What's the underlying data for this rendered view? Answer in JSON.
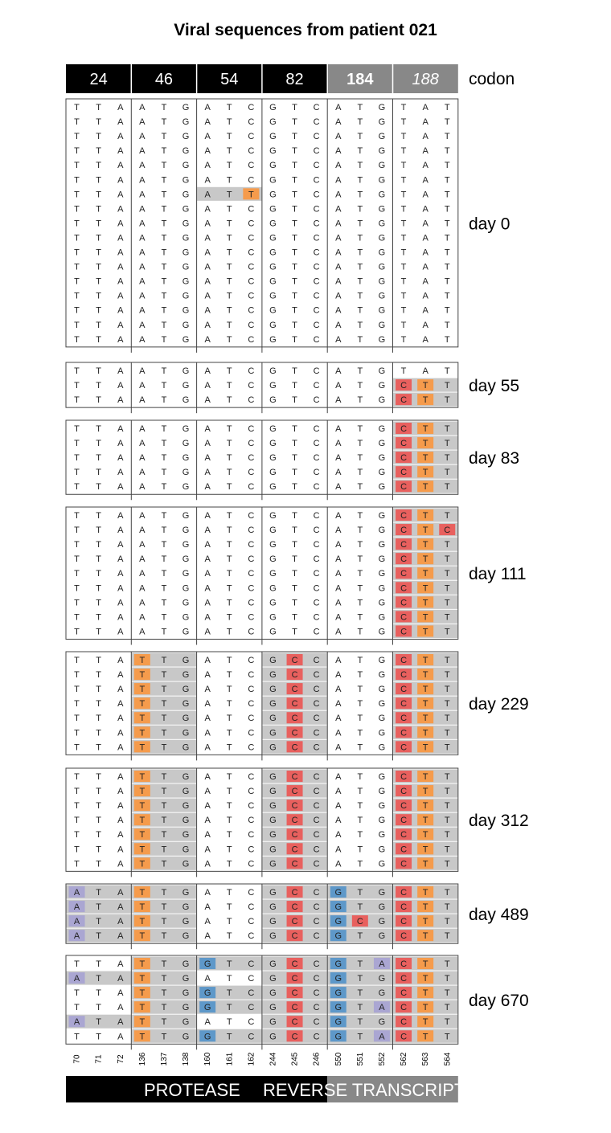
{
  "title": "Viral sequences from patient 021",
  "codon_label": "codon",
  "codons": [
    {
      "label": "24",
      "style": "black"
    },
    {
      "label": "46",
      "style": "black"
    },
    {
      "label": "54",
      "style": "black"
    },
    {
      "label": "82",
      "style": "black"
    },
    {
      "label": "184",
      "style": "gray-bold"
    },
    {
      "label": "188",
      "style": "gray-italic"
    }
  ],
  "positions": [
    "70",
    "71",
    "72",
    "136",
    "137",
    "138",
    "160",
    "161",
    "162",
    "244",
    "245",
    "246",
    "550",
    "551",
    "552",
    "562",
    "563",
    "564"
  ],
  "reference": "TTAATGATCGTCATGTAT",
  "genes": {
    "protease": "PROTEASE",
    "reverse_transcriptase": "REVERSE TRANSCRIPTASE"
  },
  "colors": {
    "A": "#aaa6d2",
    "T": "#f59b4c",
    "C": "#e8605e",
    "G": "#5e98c9",
    "codon_shade": "#c8c8c8",
    "protease_bar": "#000000",
    "rt_bar": "#888888"
  },
  "groups": [
    {
      "label": "day 0",
      "rows": [
        "TTAATGATCGTCATGTAT",
        "TTAATGATCGTCATGTAT",
        "TTAATGATCGTCATGTAT",
        "TTAATGATCGTCATGTAT",
        "TTAATGATCGTCATGTAT",
        "TTAATGATCGTCATGTAT",
        "TTAATGATTGTCATGTAT",
        "TTAATGATCGTCATGTAT",
        "TTAATGATCGTCATGTAT",
        "TTAATGATCGTCATGTAT",
        "TTAATGATCGTCATGTAT",
        "TTAATGATCGTCATGTAT",
        "TTAATGATCGTCATGTAT",
        "TTAATGATCGTCATGTAT",
        "TTAATGATCGTCATGTAT",
        "TTAATGATCGTCATGTAT",
        "TTAATGATCGTCATGTAT"
      ]
    },
    {
      "label": "day 55",
      "rows": [
        "TTAATGATCGTCATGTAT",
        "TTAATGATCGTCATGCTT",
        "TTAATGATCGTCATGCTT"
      ]
    },
    {
      "label": "day 83",
      "rows": [
        "TTAATGATCGTCATGCTT",
        "TTAATGATCGTCATGCTT",
        "TTAATGATCGTCATGCTT",
        "TTAATGATCGTCATGCTT",
        "TTAATGATCGTCATGCTT"
      ]
    },
    {
      "label": "day 111",
      "rows": [
        "TTAATGATCGTCATGCTT",
        "TTAATGATCGTCATGCTC",
        "TTAATGATCGTCATGCTT",
        "TTAATGATCGTCATGCTT",
        "TTAATGATCGTCATGCTT",
        "TTAATGATCGTCATGCTT",
        "TTAATGATCGTCATGCTT",
        "TTAATGATCGTCATGCTT",
        "TTAATGATCGTCATGCTT"
      ]
    },
    {
      "label": "day 229",
      "rows": [
        "TTATTGATCGCCATGCTT",
        "TTATTGATCGCCATGCTT",
        "TTATTGATCGCCATGCTT",
        "TTATTGATCGCCATGCTT",
        "TTATTGATCGCCATGCTT",
        "TTATTGATCGCCATGCTT",
        "TTATTGATCGCCATGCTT"
      ]
    },
    {
      "label": "day 312",
      "rows": [
        "TTATTGATCGCCATGCTT",
        "TTATTGATCGCCATGCTT",
        "TTATTGATCGCCATGCTT",
        "TTATTGATCGCCATGCTT",
        "TTATTGATCGCCATGCTT",
        "TTATTGATCGCCATGCTT",
        "TTATTGATCGCCATGCTT"
      ]
    },
    {
      "label": "day 489",
      "rows": [
        "ATATTGATCGCCGTGCTT",
        "ATATTGATCGCCGTGCTT",
        "ATATTGATCGCCGCGCTT",
        "ATATTGATCGCCGTGCTT"
      ]
    },
    {
      "label": "day 670",
      "rows": [
        "TTATTGGTCGCCGTACTT",
        "ATATTGATCGCCGTGCTT",
        "TTATTGGTCGCCGTGCTT",
        "TTATTGGTCGCCGTACTT",
        "ATATTGATCGCCGTGCTT",
        "TTATTGGTCGCCGTACTT"
      ]
    }
  ]
}
